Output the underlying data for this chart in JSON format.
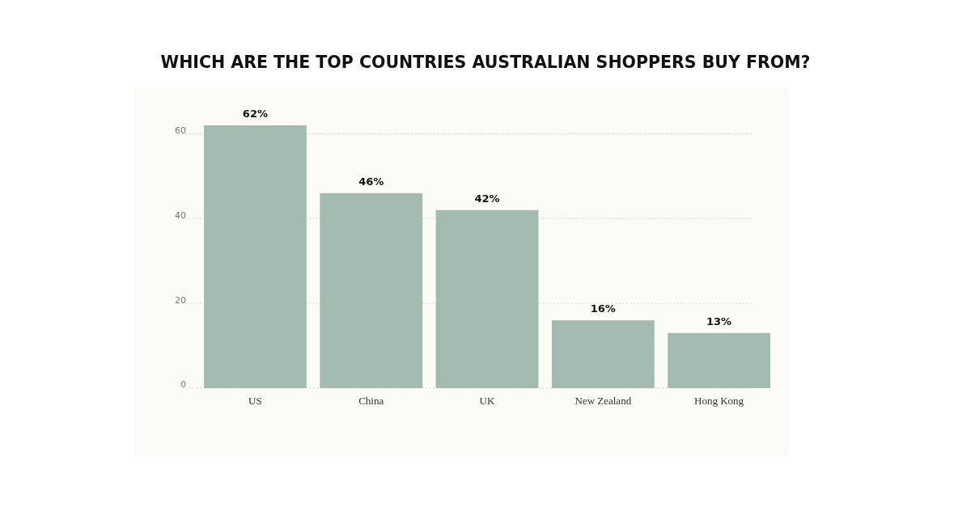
{
  "chart_data": {
    "type": "bar",
    "title": "WHICH ARE THE TOP COUNTRIES AUSTRALIAN SHOPPERS BUY FROM?",
    "categories": [
      "US",
      "China",
      "UK",
      "New Zealand",
      "Hong Kong"
    ],
    "values": [
      62,
      46,
      42,
      16,
      13
    ],
    "value_labels": [
      "62%",
      "46%",
      "42%",
      "16%",
      "13%"
    ],
    "color": "#a3bbb0",
    "ylim": [
      0,
      62
    ],
    "yticks": [
      0,
      20,
      40,
      60
    ],
    "grid": "y"
  }
}
